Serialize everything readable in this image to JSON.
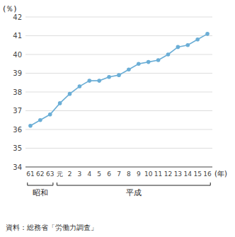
{
  "chart_data": {
    "type": "line",
    "categories": [
      "61",
      "62",
      "63",
      "元",
      "2",
      "3",
      "4",
      "5",
      "6",
      "7",
      "8",
      "9",
      "10",
      "11",
      "12",
      "13",
      "14",
      "15",
      "16"
    ],
    "values": [
      36.2,
      36.5,
      36.8,
      37.4,
      37.9,
      38.3,
      38.6,
      38.6,
      38.8,
      38.9,
      39.2,
      39.5,
      39.6,
      39.7,
      40.0,
      40.4,
      40.5,
      40.8,
      41.1
    ],
    "color": "#6baed6",
    "marker": "circle",
    "ylim": [
      34,
      42
    ],
    "yticks": [
      34,
      35,
      36,
      37,
      38,
      39,
      40,
      41,
      42
    ],
    "grid": true,
    "y_label": "(％)",
    "x_label": "(年)",
    "annotations": [
      {
        "text": "昭和",
        "from": "61",
        "to": "63"
      },
      {
        "text": "平成",
        "from": "元",
        "to": "16"
      }
    ],
    "source": "資料：総務省「労働力調査」"
  }
}
